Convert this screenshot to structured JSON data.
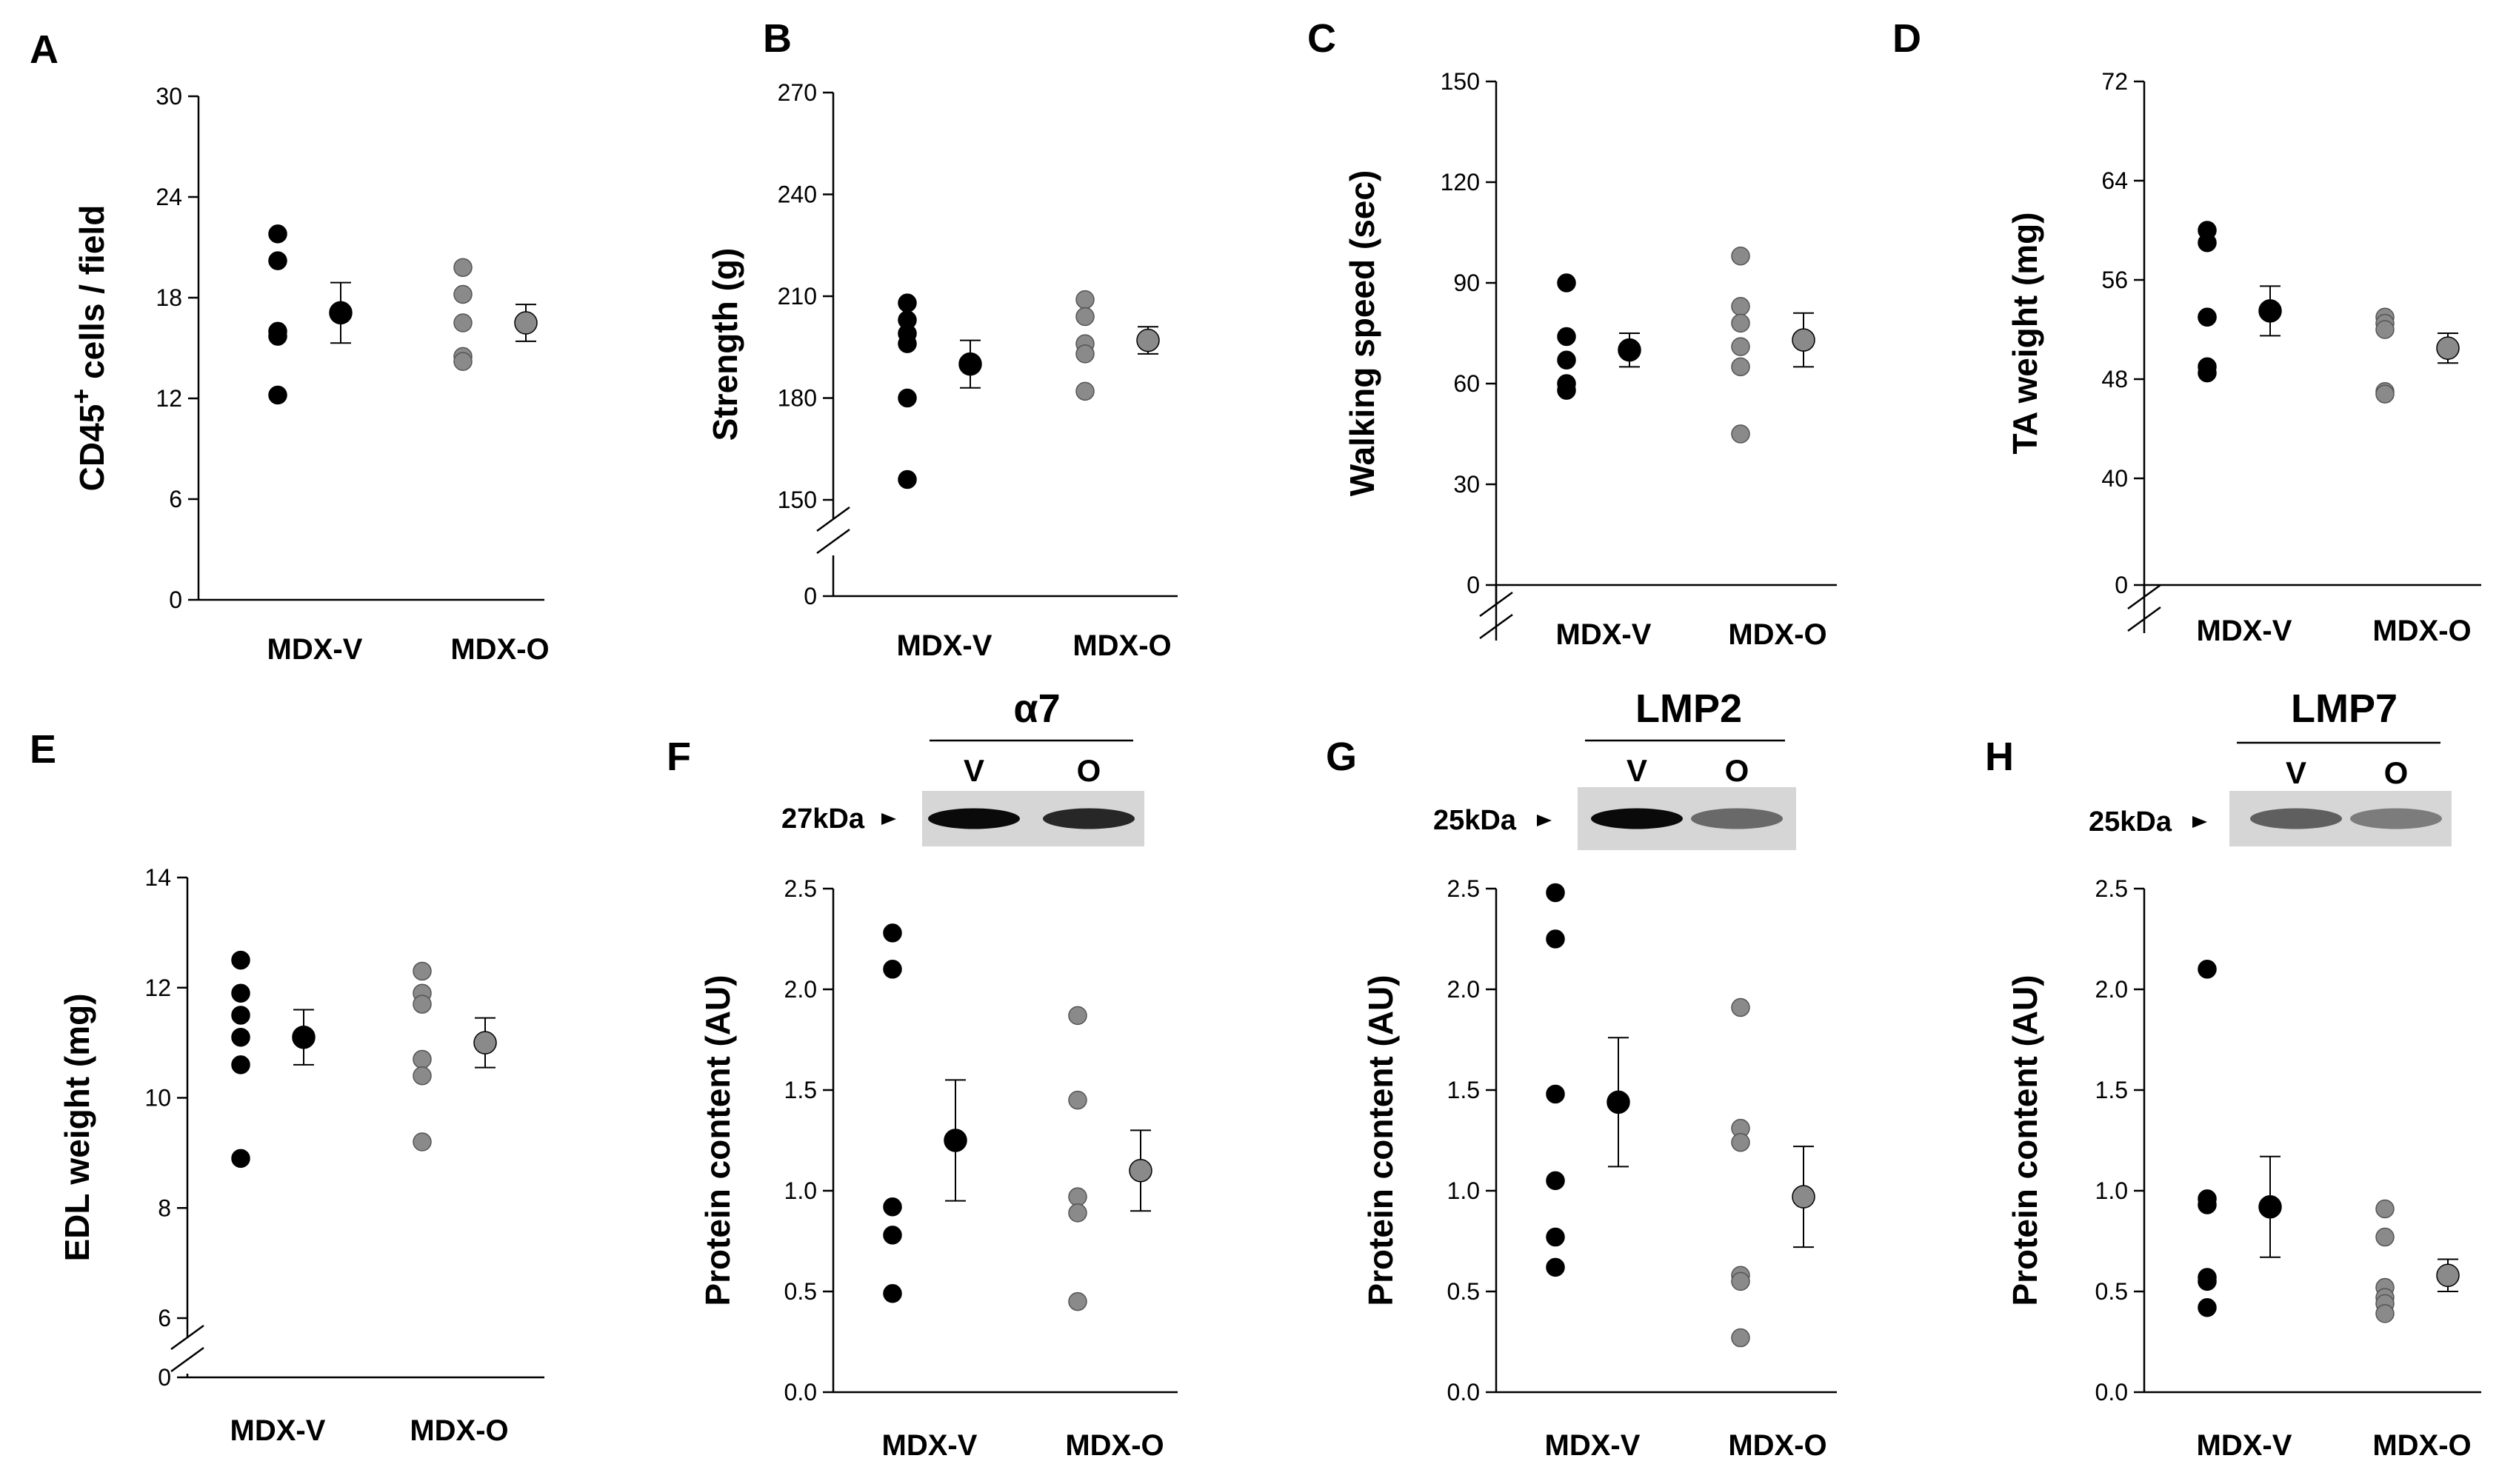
{
  "colors": {
    "vehicle": "#000000",
    "treated": "#8a8a8a",
    "treated_edge": "#555555",
    "axis": "#000000"
  },
  "chart_data": [
    {
      "panel": "A",
      "type": "scatter",
      "ylabel": "CD45",
      "ylabel_sup": "+",
      "ylabel_suffix": " cells / field",
      "yticks": [
        "0",
        "6",
        "12",
        "18",
        "24",
        "30"
      ],
      "ylim": [
        0,
        30
      ],
      "axis_break": false,
      "categories": [
        "MDX-V",
        "MDX-O"
      ],
      "series": [
        {
          "points": [
            21.8,
            20.2,
            16.0,
            15.7,
            12.2
          ],
          "mean": 17.1,
          "sem": 1.8
        },
        {
          "points": [
            19.8,
            18.2,
            16.5,
            14.5,
            14.2
          ],
          "mean": 16.5,
          "sem": 1.1
        }
      ]
    },
    {
      "panel": "B",
      "type": "scatter",
      "ylabel": "Strength (g)",
      "ylabel_sup": "",
      "ylabel_suffix": "",
      "yticks": [
        "0",
        "150",
        "180",
        "210",
        "240",
        "270"
      ],
      "ylim": [
        150,
        270
      ],
      "axis_break": true,
      "categories": [
        "MDX-V",
        "MDX-O"
      ],
      "series": [
        {
          "points": [
            208,
            203,
            199,
            196,
            180,
            156
          ],
          "mean": 190,
          "sem": 7
        },
        {
          "points": [
            209,
            204,
            196,
            193,
            182
          ],
          "mean": 197,
          "sem": 4
        }
      ]
    },
    {
      "panel": "C",
      "type": "scatter",
      "ylabel": "Walking speed (sec)",
      "ylabel_sup": "",
      "ylabel_suffix": "",
      "yticks": [
        "0",
        "30",
        "60",
        "90",
        "120",
        "150"
      ],
      "ylim": [
        0,
        150
      ],
      "axis_break": true,
      "categories": [
        "MDX-V",
        "MDX-O"
      ],
      "series": [
        {
          "points": [
            90,
            74,
            67,
            60,
            58
          ],
          "mean": 70,
          "sem": 5
        },
        {
          "points": [
            98,
            83,
            78,
            71,
            65,
            45
          ],
          "mean": 73,
          "sem": 8
        }
      ]
    },
    {
      "panel": "D",
      "type": "scatter",
      "ylabel": "TA weight (mg)",
      "ylabel_sup": "",
      "ylabel_suffix": "",
      "yticks": [
        "0",
        "40",
        "48",
        "56",
        "64",
        "72"
      ],
      "ylim": [
        32,
        72
      ],
      "axis_break": true,
      "categories": [
        "MDX-V",
        "MDX-O"
      ],
      "series": [
        {
          "points": [
            60,
            59,
            53,
            53,
            49,
            48.5
          ],
          "mean": 53.5,
          "sem": 2
        },
        {
          "points": [
            53,
            52.5,
            52,
            47,
            46.8
          ],
          "mean": 50.5,
          "sem": 1.2
        }
      ]
    },
    {
      "panel": "E",
      "type": "scatter",
      "ylabel": "EDL weight (mg)",
      "ylabel_sup": "",
      "ylabel_suffix": "",
      "yticks": [
        "0",
        "6",
        "8",
        "10",
        "12",
        "14"
      ],
      "ylim": [
        6,
        14
      ],
      "axis_break": true,
      "categories": [
        "MDX-V",
        "MDX-O"
      ],
      "series": [
        {
          "points": [
            12.5,
            11.9,
            11.5,
            11.1,
            10.6,
            8.9
          ],
          "mean": 11.1,
          "sem": 0.5
        },
        {
          "points": [
            12.3,
            11.9,
            11.7,
            10.7,
            10.4,
            9.2
          ],
          "mean": 11.0,
          "sem": 0.45
        }
      ]
    },
    {
      "panel": "F",
      "type": "scatter",
      "ylabel": "Protein content (AU)",
      "ylabel_sup": "",
      "ylabel_suffix": "",
      "yticks": [
        "0.0",
        "0.5",
        "1.0",
        "1.5",
        "2.0",
        "2.5"
      ],
      "ylim": [
        0,
        2.5
      ],
      "axis_break": false,
      "categories": [
        "MDX-V",
        "MDX-O"
      ],
      "series": [
        {
          "points": [
            2.28,
            2.1,
            0.92,
            0.78,
            0.49
          ],
          "mean": 1.25,
          "sem": 0.3
        },
        {
          "points": [
            1.87,
            1.45,
            0.97,
            0.89,
            0.45
          ],
          "mean": 1.1,
          "sem": 0.2
        }
      ],
      "blot": {
        "title": "α7",
        "lanes": [
          "V",
          "O"
        ],
        "marker": "27kDa",
        "band_darkness": [
          1.0,
          0.85
        ]
      }
    },
    {
      "panel": "G",
      "type": "scatter",
      "ylabel": "Protein content (AU)",
      "ylabel_sup": "",
      "ylabel_suffix": "",
      "yticks": [
        "0.0",
        "0.5",
        "1.0",
        "1.5",
        "2.0",
        "2.5"
      ],
      "ylim": [
        0,
        2.5
      ],
      "axis_break": false,
      "categories": [
        "MDX-V",
        "MDX-O"
      ],
      "series": [
        {
          "points": [
            2.48,
            2.25,
            1.48,
            1.05,
            0.77,
            0.62
          ],
          "mean": 1.44,
          "sem": 0.32
        },
        {
          "points": [
            1.91,
            1.31,
            1.24,
            0.58,
            0.55,
            0.27
          ],
          "mean": 0.97,
          "sem": 0.25
        }
      ],
      "blot": {
        "title": "LMP2",
        "lanes": [
          "V",
          "O"
        ],
        "marker": "25kDa",
        "band_darkness": [
          1.0,
          0.5
        ]
      }
    },
    {
      "panel": "H",
      "type": "scatter",
      "ylabel": "Protein content (AU)",
      "ylabel_sup": "",
      "ylabel_suffix": "",
      "yticks": [
        "0.0",
        "0.5",
        "1.0",
        "1.5",
        "2.0",
        "2.5"
      ],
      "ylim": [
        0,
        2.5
      ],
      "axis_break": false,
      "categories": [
        "MDX-V",
        "MDX-O"
      ],
      "series": [
        {
          "points": [
            2.1,
            0.96,
            0.93,
            0.57,
            0.55,
            0.42
          ],
          "mean": 0.92,
          "sem": 0.25
        },
        {
          "points": [
            0.91,
            0.77,
            0.52,
            0.47,
            0.44,
            0.39
          ],
          "mean": 0.58,
          "sem": 0.08
        }
      ],
      "blot": {
        "title": "LMP7",
        "lanes": [
          "V",
          "O"
        ],
        "marker": "25kDa",
        "band_darkness": [
          0.55,
          0.4
        ]
      }
    }
  ]
}
